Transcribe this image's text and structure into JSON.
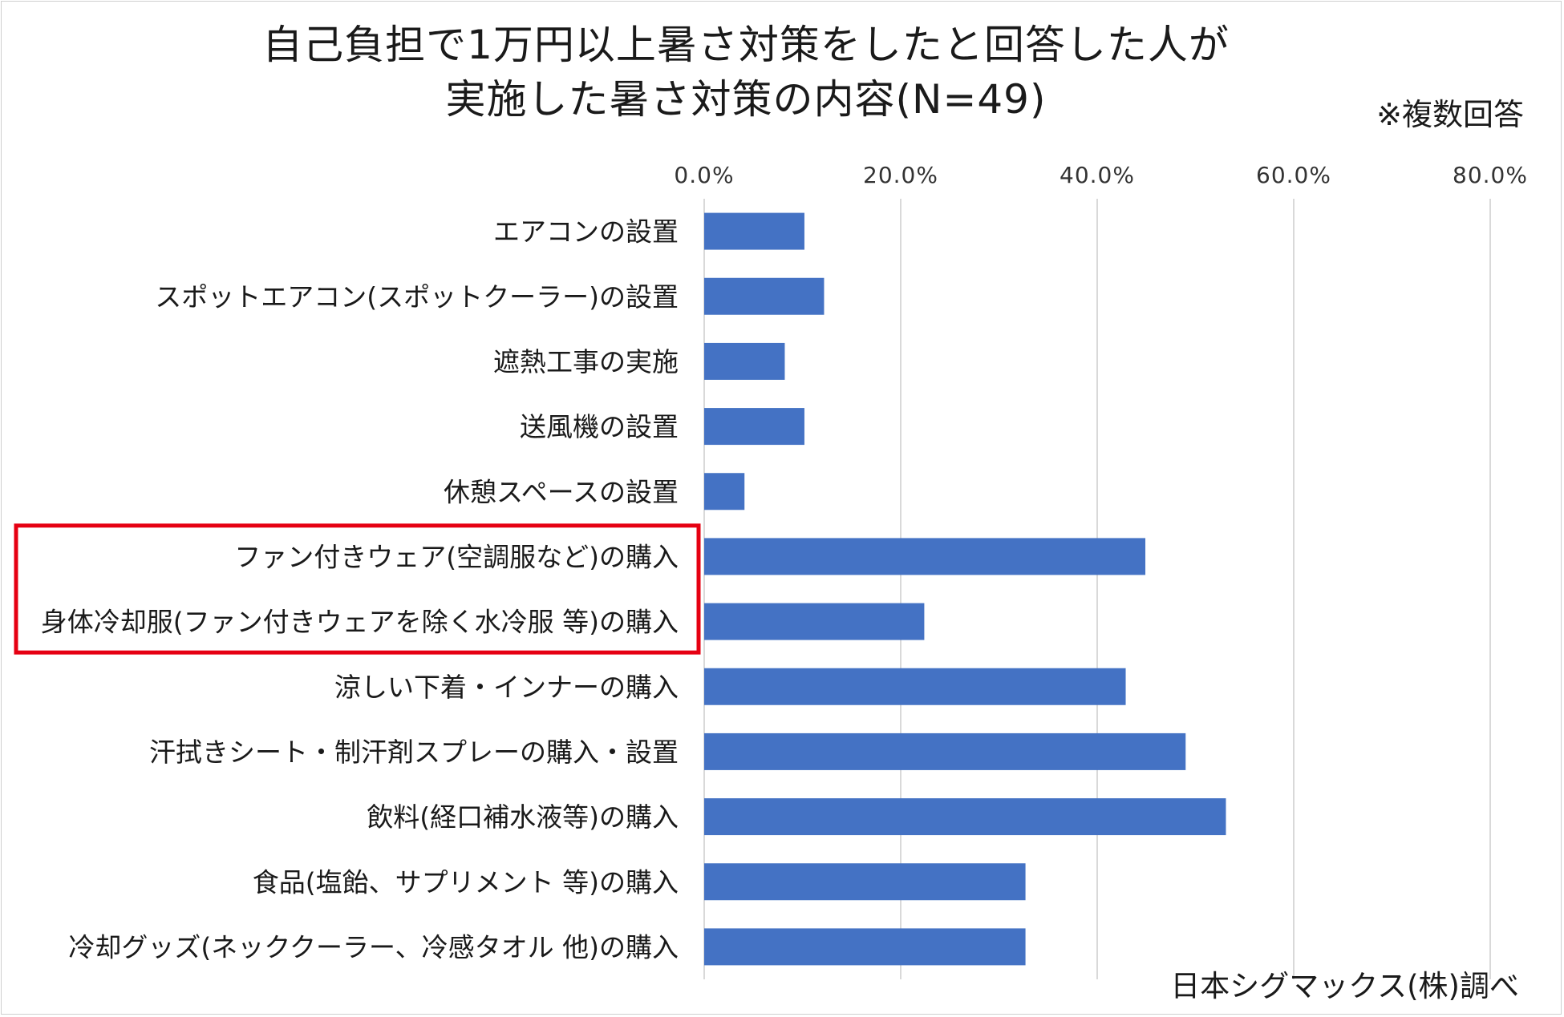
{
  "title_line1": "自己負担で1万円以上暑さ対策をしたと回答した人が",
  "title_line2": "実施した暑さ対策の内容(N=49)",
  "note": "※複数回答",
  "source": "日本シグマックス(株)調べ",
  "colors": {
    "bar": "#4472c4",
    "grid": "#d9d9d9",
    "highlight": "#e60012"
  },
  "chart_data": {
    "type": "bar",
    "orientation": "horizontal",
    "title": "自己負担で1万円以上暑さ対策をしたと回答した人が実施した暑さ対策の内容(N=49)",
    "xlim": [
      0,
      80
    ],
    "ticks": [
      "0.0%",
      "20.0%",
      "40.0%",
      "60.0%",
      "80.0%"
    ],
    "grid": true,
    "categories": [
      "エアコンの設置",
      "スポットエアコン(スポットクーラー)の設置",
      "遮熱工事の実施",
      "送風機の設置",
      "休憩スペースの設置",
      "ファン付きウェア(空調服など)の購入",
      "身体冷却服(ファン付きウェアを除く水冷服 等)の購入",
      "涼しい下着・インナーの購入",
      "汗拭きシート・制汗剤スプレーの購入・設置",
      "飲料(経口補水液等)の購入",
      "食品(塩飴、サプリメント 等)の購入",
      "冷却グッズ(ネッククーラー、冷感タオル 他)の購入"
    ],
    "values": [
      10.2,
      12.2,
      8.2,
      10.2,
      4.1,
      44.9,
      22.4,
      42.9,
      49.0,
      53.1,
      32.7,
      32.7
    ],
    "highlighted_categories": [
      5,
      6
    ]
  }
}
